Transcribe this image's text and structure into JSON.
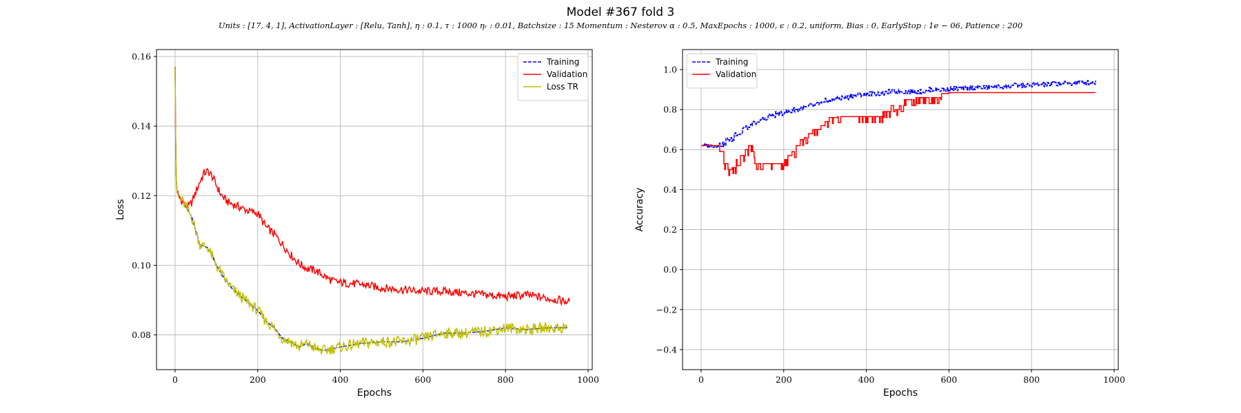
{
  "figure": {
    "title": "Model #367 fold 3",
    "subtitle": "Units : [17, 4, 1], ActivationLayer : [Relu, Tanh], η : 0.1, τ : 1000 ηᵣ : 0.01, Batchsize : 15 Momentum : Nesterov α : 0.5, MaxEpochs : 1000, ϵ : 0.2, uniform, Bias : 0, EarlyStop : 1e − 06, Patience : 200"
  },
  "chart_data": [
    {
      "type": "line",
      "title": "",
      "xlabel": "Epochs",
      "ylabel": "Loss",
      "xlim": [
        -45,
        1010
      ],
      "ylim": [
        0.07,
        0.162
      ],
      "xticks": [
        0,
        200,
        400,
        600,
        800,
        1000
      ],
      "xtick_labels": [
        "0",
        "200",
        "400",
        "600",
        "800",
        "1000"
      ],
      "yticks": [
        0.08,
        0.1,
        0.12,
        0.14,
        0.16
      ],
      "ytick_labels": [
        "0.08",
        "0.10",
        "0.12",
        "0.14",
        "0.16"
      ],
      "grid": true,
      "legend_position": "top-right",
      "series": [
        {
          "name": "Training",
          "color": "#0000ff",
          "dash": "dashed",
          "x": [
            0,
            1,
            2,
            3,
            5,
            10,
            20,
            40,
            60,
            80,
            100,
            120,
            140,
            160,
            180,
            200,
            220,
            240,
            260,
            280,
            300,
            320,
            340,
            360,
            380,
            400,
            450,
            500,
            550,
            600,
            650,
            700,
            750,
            800,
            850,
            900,
            950
          ],
          "y": [
            0.157,
            0.14,
            0.13,
            0.124,
            0.121,
            0.12,
            0.118,
            0.114,
            0.106,
            0.105,
            0.1,
            0.096,
            0.093,
            0.091,
            0.089,
            0.087,
            0.084,
            0.082,
            0.079,
            0.078,
            0.0765,
            0.0775,
            0.076,
            0.0755,
            0.076,
            0.0765,
            0.0775,
            0.078,
            0.078,
            0.079,
            0.0805,
            0.0805,
            0.081,
            0.082,
            0.0815,
            0.082,
            0.082
          ]
        },
        {
          "name": "Validation",
          "color": "#ff0000",
          "dash": "solid",
          "x": [
            0,
            1,
            2,
            3,
            5,
            10,
            20,
            30,
            40,
            50,
            60,
            70,
            80,
            90,
            100,
            110,
            120,
            130,
            140,
            160,
            180,
            200,
            220,
            240,
            260,
            280,
            300,
            320,
            340,
            360,
            380,
            400,
            450,
            500,
            550,
            600,
            650,
            700,
            750,
            800,
            850,
            900,
            955
          ],
          "y": [
            0.157,
            0.14,
            0.13,
            0.124,
            0.121,
            0.1195,
            0.118,
            0.1165,
            0.118,
            0.121,
            0.124,
            0.1265,
            0.127,
            0.1255,
            0.123,
            0.1205,
            0.119,
            0.118,
            0.1175,
            0.1165,
            0.1155,
            0.115,
            0.111,
            0.109,
            0.106,
            0.103,
            0.1005,
            0.099,
            0.0985,
            0.097,
            0.0955,
            0.095,
            0.0945,
            0.0935,
            0.093,
            0.0925,
            0.0925,
            0.092,
            0.0915,
            0.091,
            0.0915,
            0.0905,
            0.0895
          ]
        },
        {
          "name": "Loss TR",
          "color": "#bfbf00",
          "dash": "solid",
          "x": [
            0,
            1,
            2,
            3,
            5,
            10,
            20,
            40,
            60,
            80,
            100,
            120,
            140,
            160,
            180,
            200,
            220,
            240,
            260,
            280,
            300,
            320,
            340,
            360,
            380,
            400,
            450,
            500,
            550,
            600,
            650,
            700,
            750,
            800,
            850,
            900,
            950
          ],
          "y": [
            0.157,
            0.14,
            0.13,
            0.124,
            0.121,
            0.12,
            0.118,
            0.114,
            0.106,
            0.105,
            0.1,
            0.096,
            0.093,
            0.091,
            0.089,
            0.087,
            0.084,
            0.082,
            0.079,
            0.078,
            0.0765,
            0.0775,
            0.076,
            0.0755,
            0.076,
            0.0765,
            0.0775,
            0.078,
            0.078,
            0.079,
            0.0805,
            0.0805,
            0.081,
            0.082,
            0.0815,
            0.082,
            0.082
          ]
        }
      ]
    },
    {
      "type": "line",
      "title": "",
      "xlabel": "Epochs",
      "ylabel": "Accuracy",
      "xlim": [
        -45,
        1010
      ],
      "ylim": [
        -0.5,
        1.1
      ],
      "xticks": [
        0,
        200,
        400,
        600,
        800,
        1000
      ],
      "xtick_labels": [
        "0",
        "200",
        "400",
        "600",
        "800",
        "1000"
      ],
      "yticks": [
        -0.4,
        -0.2,
        0.0,
        0.2,
        0.4,
        0.6,
        0.8,
        1.0
      ],
      "ytick_labels": [
        "−0.4",
        "−0.2",
        "0.0",
        "0.2",
        "0.4",
        "0.6",
        "0.8",
        "1.0"
      ],
      "grid": true,
      "legend_position": "top-left",
      "series": [
        {
          "name": "Training",
          "color": "#0000ff",
          "dash": "dashed",
          "x": [
            0,
            20,
            40,
            60,
            80,
            100,
            120,
            140,
            160,
            180,
            200,
            220,
            240,
            260,
            280,
            300,
            320,
            340,
            360,
            380,
            400,
            450,
            500,
            550,
            600,
            650,
            700,
            750,
            800,
            850,
            900,
            955
          ],
          "y": [
            0.62,
            0.62,
            0.625,
            0.65,
            0.68,
            0.71,
            0.73,
            0.75,
            0.77,
            0.78,
            0.79,
            0.8,
            0.81,
            0.82,
            0.83,
            0.845,
            0.855,
            0.86,
            0.87,
            0.875,
            0.88,
            0.89,
            0.89,
            0.9,
            0.905,
            0.91,
            0.915,
            0.92,
            0.925,
            0.93,
            0.935,
            0.945
          ]
        },
        {
          "name": "Validation",
          "color": "#ff0000",
          "dash": "solid",
          "x": [
            0,
            40,
            45,
            55,
            65,
            75,
            85,
            95,
            105,
            115,
            125,
            130,
            140,
            190,
            200,
            210,
            220,
            230,
            240,
            250,
            260,
            270,
            280,
            290,
            300,
            310,
            320,
            330,
            400,
            430,
            440,
            450,
            460,
            470,
            480,
            490,
            500,
            520,
            540,
            560,
            580,
            600,
            955
          ],
          "y": [
            0.62,
            0.62,
            0.59,
            0.53,
            0.5,
            0.51,
            0.55,
            0.57,
            0.6,
            0.62,
            0.59,
            0.53,
            0.53,
            0.53,
            0.55,
            0.57,
            0.59,
            0.62,
            0.65,
            0.66,
            0.68,
            0.7,
            0.7,
            0.72,
            0.74,
            0.76,
            0.76,
            0.765,
            0.765,
            0.765,
            0.79,
            0.79,
            0.82,
            0.8,
            0.82,
            0.85,
            0.85,
            0.86,
            0.86,
            0.86,
            0.88,
            0.885,
            0.885
          ]
        }
      ]
    }
  ]
}
